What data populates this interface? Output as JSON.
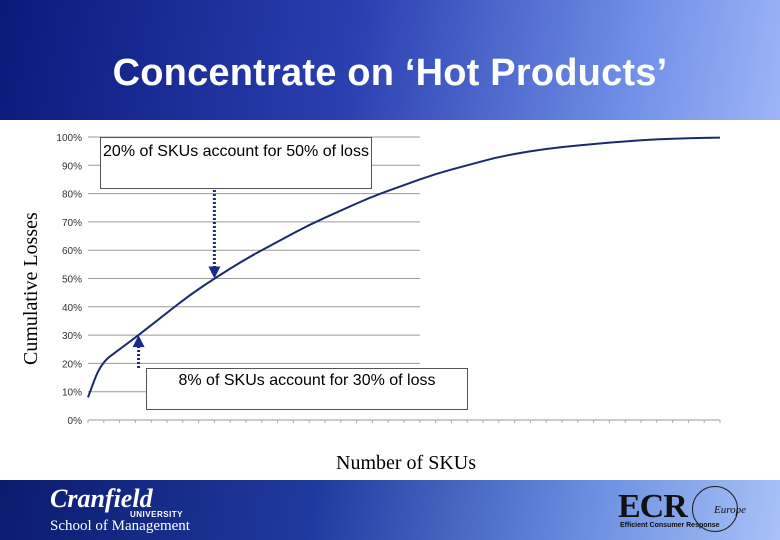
{
  "slide": {
    "title": "Concentrate on ‘Hot Products’",
    "annotation_top": "20% of SKUs account for 50% of loss",
    "annotation_bottom": "8% of SKUs account for 30% of loss"
  },
  "footer": {
    "left_logo_line1": "Cranfield",
    "left_logo_line2": "UNIVERSITY",
    "left_logo_line3": "School of Management",
    "right_logo_main": "ECR",
    "right_logo_sub": "Europe",
    "right_logo_tag": "Efficient Consumer Response"
  },
  "colors": {
    "header_dark": "#0a1a7a",
    "header_light": "#9db5f7",
    "curve": "#1a2a6e",
    "arrow": "#1a2a8a"
  },
  "chart_data": {
    "type": "line",
    "title": "",
    "xlabel": "Number of SKUs",
    "ylabel": "Cumulative Losses",
    "yticks": [
      "0%",
      "10%",
      "20%",
      "30%",
      "40%",
      "50%",
      "60%",
      "70%",
      "80%",
      "90%",
      "100%"
    ],
    "ylim": [
      0,
      100
    ],
    "xlim": [
      0,
      100
    ],
    "x": [
      0,
      2,
      5,
      8,
      12,
      16,
      20,
      25,
      30,
      35,
      40,
      45,
      50,
      55,
      60,
      65,
      70,
      75,
      80,
      85,
      90,
      95,
      100
    ],
    "y": [
      8,
      20,
      25,
      30,
      37,
      44,
      50,
      57,
      63,
      69,
      74,
      79,
      83,
      87,
      90,
      93,
      95,
      96.5,
      97.5,
      98.5,
      99.2,
      99.6,
      99.8
    ],
    "annotations": [
      {
        "text": "20% of SKUs account for 50% of loss",
        "x": 20,
        "y": 50
      },
      {
        "text": "8% of SKUs account for 30% of loss",
        "x": 8,
        "y": 30
      }
    ]
  }
}
